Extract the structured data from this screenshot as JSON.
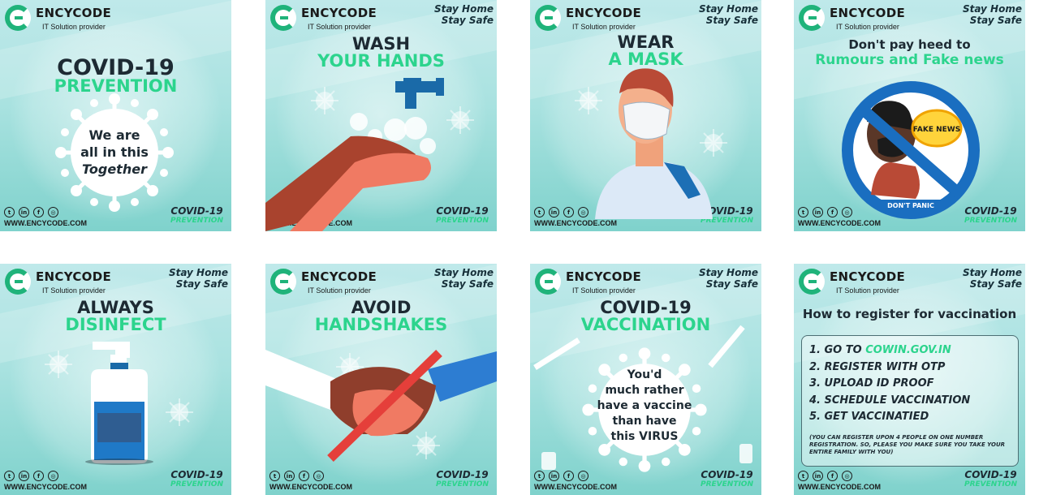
{
  "brand": {
    "name": "ENCYCODE",
    "tagline": "IT Solution provider",
    "website": "WWW.ENCYCODE.COM"
  },
  "slogan": {
    "line1": "Stay Home",
    "line2": "Stay Safe"
  },
  "corner": {
    "line1": "COVID-19",
    "line2": "PREVENTION"
  },
  "social_icons": [
    "twitter-icon",
    "linkedin-icon",
    "facebook-icon",
    "instagram-icon"
  ],
  "colors": {
    "accent": "#2cd48d",
    "dark": "#1d2a33",
    "teal_bg": "#a9e2e0",
    "brand_green": "#1fb37a"
  },
  "cards": [
    {
      "title1": "COVID-19",
      "title2": "PREVENTION",
      "body": [
        "We are",
        "all in this",
        "Together"
      ]
    },
    {
      "title1": "WASH",
      "title2": "YOUR HANDS"
    },
    {
      "title1": "WEAR",
      "title2": "A MASK"
    },
    {
      "title1": "Don't pay heed to",
      "title2": "Rumours and Fake news",
      "bubble": "FAKE NEWS",
      "badge": "DON'T PANIC"
    },
    {
      "title1": "ALWAYS",
      "title2": "DISINFECT"
    },
    {
      "title1": "AVOID",
      "title2": "HANDSHAKES"
    },
    {
      "title1": "COVID-19",
      "title2": "VACCINATION",
      "body": [
        "You'd",
        "much rather",
        "have a vaccine",
        "than have",
        "this VIRUS"
      ]
    },
    {
      "title1": "How to register for vaccination",
      "steps": [
        {
          "prefix": "1. GO TO ",
          "link": "COWIN.GOV.IN"
        },
        {
          "prefix": "2. REGISTER WITH OTP"
        },
        {
          "prefix": "3. UPLOAD ID PROOF"
        },
        {
          "prefix": "4. SCHEDULE VACCINATION"
        },
        {
          "prefix": "5. GET VACCINATIED"
        }
      ],
      "note": "(YOU CAN REGISTER UPON 4 PEOPLE ON ONE NUMBER REGISTRATION. SO, PLEASE YOU MAKE SURE YOU TAKE YOUR ENTIRE FAMILY WITH YOU)"
    }
  ]
}
